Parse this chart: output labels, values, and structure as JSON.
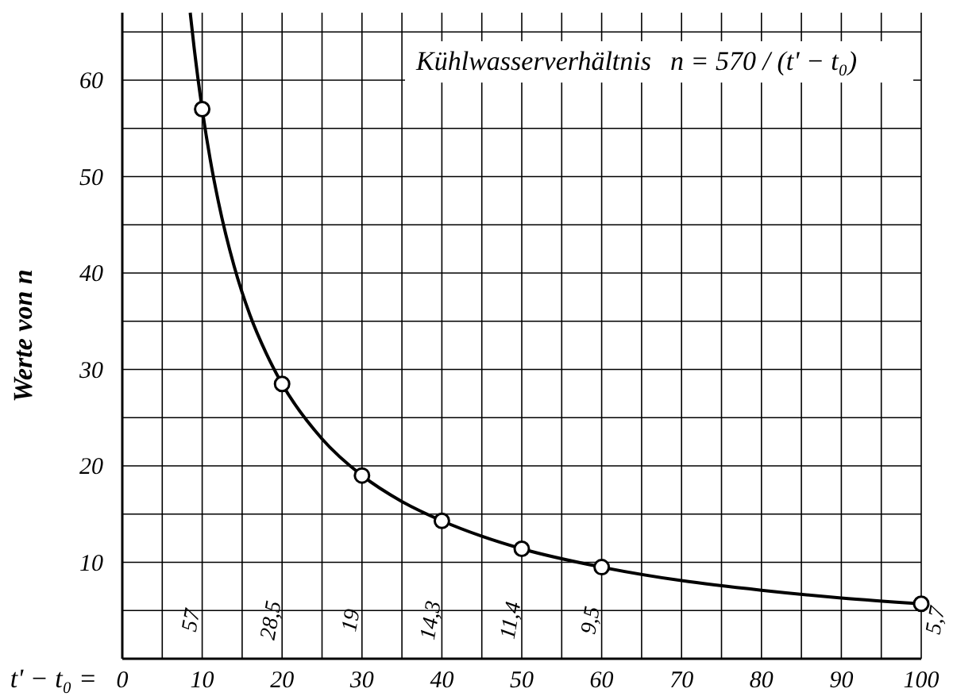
{
  "chart_data": {
    "type": "scatter",
    "title": "Kühlwasserverhältnis",
    "annotations": [
      "n = 570 / (t' − t₀)",
      "57",
      "28,5",
      "19",
      "14,3",
      "11,4",
      "9,5",
      "5,7"
    ],
    "xlabel": "t' − t₀ =",
    "ylabel": "Werte von n",
    "xlim": [
      0,
      100
    ],
    "ylim": [
      0,
      67
    ],
    "xticks": [
      0,
      {
        "value": 5,
        "label": null
      },
      10,
      {
        "value": 15,
        "label": null
      },
      20,
      {
        "value": 25,
        "label": null
      },
      30,
      {
        "value": 35,
        "label": null
      },
      40,
      {
        "value": 45,
        "label": null
      },
      50,
      {
        "value": 55,
        "label": null
      },
      60,
      {
        "value": 65,
        "label": null
      },
      70,
      {
        "value": 75,
        "label": null
      },
      80,
      {
        "value": 85,
        "label": null
      },
      90,
      {
        "value": 95,
        "label": null
      },
      100
    ],
    "yticks": [
      {
        "value": 5,
        "label": null
      },
      10,
      {
        "value": 15,
        "label": null
      },
      20,
      {
        "value": 25,
        "label": null
      },
      30,
      {
        "value": 35,
        "label": null
      },
      40,
      {
        "value": 45,
        "label": null
      },
      50,
      {
        "value": 55,
        "label": null
      },
      60,
      {
        "value": 65,
        "label": null
      }
    ],
    "grid": true,
    "series": [
      {
        "type": "line",
        "color": "#000000",
        "marker": "none",
        "x": [
          8.5,
          9,
          10,
          11,
          12,
          14,
          16,
          18,
          20,
          25,
          30,
          35,
          40,
          45,
          50,
          60,
          70,
          80,
          90,
          100
        ],
        "values": [
          67,
          63.3,
          57,
          51.8,
          47.5,
          40.7,
          35.6,
          31.7,
          28.5,
          22.8,
          19,
          16.3,
          14.3,
          12.7,
          11.4,
          9.5,
          8.1,
          7.1,
          6.3,
          5.7
        ]
      },
      {
        "color": "#000000",
        "marker": "circle",
        "x": [
          10,
          20,
          30,
          40,
          50,
          60,
          100
        ],
        "values": [
          57,
          28.5,
          19,
          14.3,
          11.4,
          9.5,
          5.7
        ]
      }
    ]
  }
}
